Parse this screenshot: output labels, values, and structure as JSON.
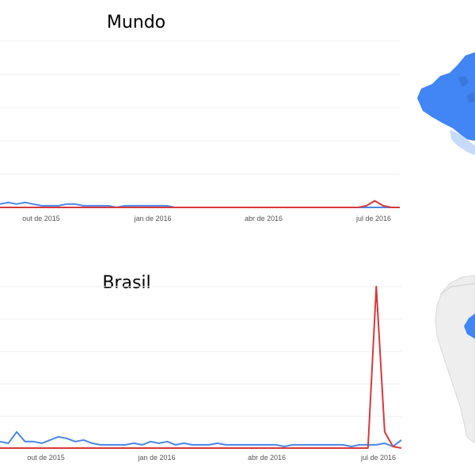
{
  "colors": {
    "blue_series": "#4a86e8",
    "red_series": "#d9383a",
    "grid": "#ececec",
    "map_blue": "#4285f4",
    "map_light": "#c6dafc",
    "map_pale": "#e6e6e6"
  },
  "chart_data": [
    {
      "type": "line",
      "title": "Mundo",
      "xlabel": "",
      "ylabel": "",
      "grid": true,
      "legend": "none",
      "ylim": [
        0,
        100
      ],
      "x_tick_labels": [
        "out de 2015",
        "jan de 2016",
        "abr de 2016",
        "jul de 2016"
      ],
      "x_tick_weeks": [
        7,
        20,
        33,
        46
      ],
      "x_range_weeks": [
        0,
        48
      ],
      "series": [
        {
          "color": "#4a86e8",
          "values": [
            2,
            3,
            2,
            3,
            2,
            1,
            1,
            1,
            2,
            2,
            1,
            1,
            1,
            1,
            0,
            1,
            1,
            1,
            1,
            1,
            1,
            0,
            0,
            0,
            0,
            0,
            0,
            0,
            0,
            0,
            0,
            0,
            0,
            0,
            0,
            0,
            0,
            0,
            0,
            0,
            0,
            0,
            0,
            0,
            0,
            0,
            0,
            0,
            0
          ]
        },
        {
          "color": "#d9383a",
          "values": [
            0,
            0,
            0,
            0,
            0,
            0,
            0,
            0,
            0,
            0,
            0,
            0,
            0,
            0,
            0,
            0,
            0,
            0,
            0,
            0,
            0,
            0,
            0,
            0,
            0,
            0,
            0,
            0,
            0,
            0,
            0,
            0,
            0,
            0,
            0,
            0,
            0,
            0,
            0,
            0,
            0,
            0,
            0,
            0,
            1,
            4,
            1,
            0,
            0
          ]
        }
      ]
    },
    {
      "type": "line",
      "title": "Brasil",
      "xlabel": "",
      "ylabel": "",
      "grid": true,
      "legend": "none",
      "ylim": [
        0,
        100
      ],
      "x_tick_labels": [
        "out de 2015",
        "jan de 2016",
        "abr de 2016",
        "jul de 2016"
      ],
      "x_tick_weeks": [
        7,
        20,
        33,
        46
      ],
      "x_range_weeks": [
        0,
        48
      ],
      "series": [
        {
          "color": "#4a86e8",
          "values": [
            4,
            3,
            10,
            4,
            4,
            3,
            5,
            7,
            6,
            4,
            5,
            3,
            2,
            2,
            2,
            2,
            3,
            2,
            4,
            3,
            4,
            2,
            3,
            2,
            2,
            2,
            3,
            2,
            2,
            2,
            2,
            2,
            2,
            2,
            1,
            2,
            2,
            2,
            2,
            2,
            2,
            2,
            1,
            2,
            2,
            2,
            3,
            1,
            5
          ]
        },
        {
          "color": "#d9383a",
          "values": [
            0,
            0,
            0,
            0,
            0,
            0,
            0,
            0,
            0,
            0,
            0,
            0,
            0,
            0,
            0,
            0,
            0,
            0,
            0,
            0,
            0,
            0,
            0,
            0,
            0,
            0,
            0,
            0,
            0,
            0,
            0,
            0,
            0,
            0,
            0,
            0,
            0,
            0,
            0,
            0,
            0,
            0,
            0,
            0,
            0,
            100,
            10,
            1,
            0
          ]
        }
      ]
    }
  ]
}
